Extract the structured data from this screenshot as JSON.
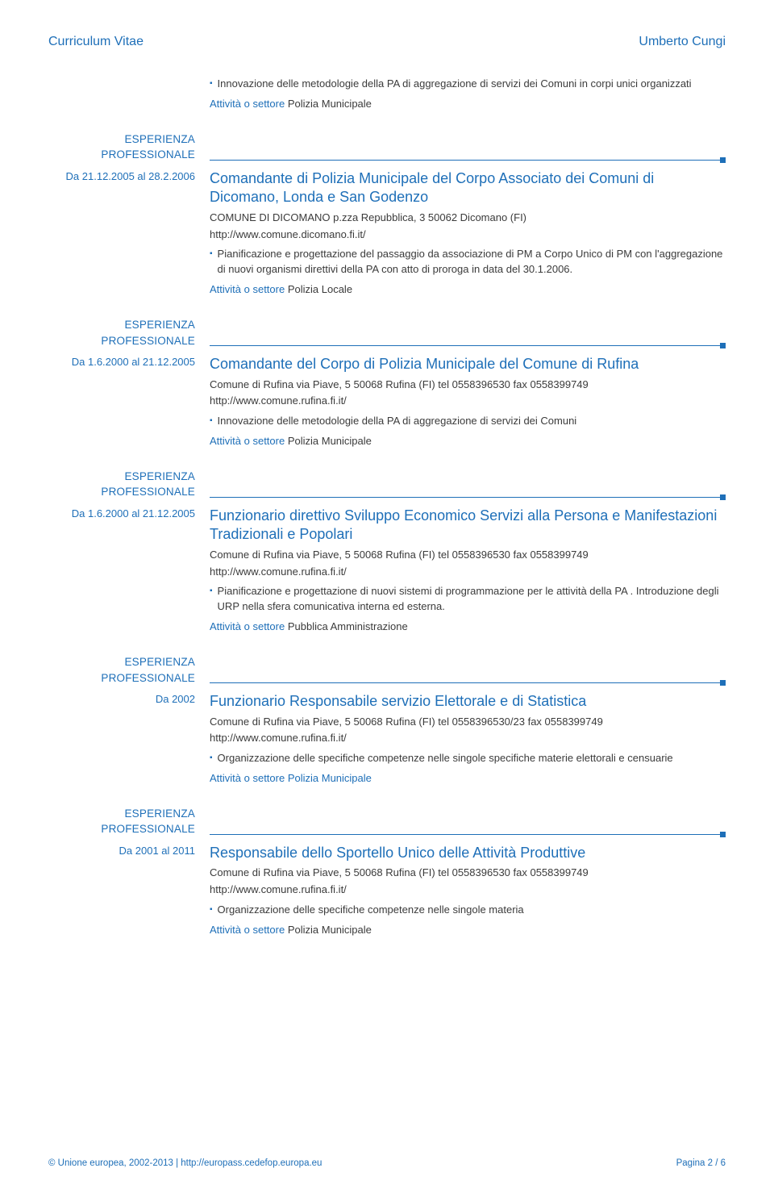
{
  "colors": {
    "accent": "#1e6fb8",
    "text": "#3b3b3b",
    "background": "#ffffff"
  },
  "typography": {
    "body_font_family": "Arial, Helvetica, sans-serif",
    "body_fontsize_pt": 10,
    "job_title_fontsize_pt": 14,
    "header_fontsize_pt": 12
  },
  "header": {
    "left": "Curriculum Vitae",
    "right": "Umberto Cungi"
  },
  "intro_entry": {
    "bullets": [
      "Innovazione delle metodologie della PA di aggregazione di servizi dei Comuni in corpi unici organizzati"
    ],
    "activity_label": "Attività o settore",
    "activity_value": "Polizia Municipale"
  },
  "section_label_line1": "ESPERIENZA",
  "section_label_line2": "PROFESSIONALE",
  "entries": [
    {
      "date": "Da 21.12.2005 al 28.2.2006",
      "title": "Comandante di Polizia Municipale del Corpo Associato dei Comuni di Dicomano, Londa e San Godenzo",
      "employer": "COMUNE DI DICOMANO p.zza Repubblica, 3 50062 Dicomano (FI)",
      "link": "http://www.comune.dicomano.fi.it/",
      "bullets": [
        "Pianificazione e progettazione del passaggio da associazione di PM a Corpo Unico di PM con l'aggregazione di nuovi organismi direttivi della PA con atto di proroga in data del 30.1.2006."
      ],
      "activity_label": "Attività o settore",
      "activity_value": "Polizia Locale",
      "activity_value_blue": false
    },
    {
      "date": "Da 1.6.2000 al 21.12.2005",
      "title": "Comandante del Corpo di Polizia Municipale del Comune di Rufina",
      "employer": "Comune di Rufina via Piave, 5 50068 Rufina (FI) tel 0558396530 fax 0558399749",
      "link": "http://www.comune.rufina.fi.it/",
      "bullets": [
        "Innovazione delle metodologie della PA di aggregazione di servizi dei Comuni"
      ],
      "activity_label": "Attività o settore",
      "activity_value": "Polizia Municipale",
      "activity_value_blue": false
    },
    {
      "date": "Da 1.6.2000 al 21.12.2005",
      "title": "Funzionario direttivo Sviluppo Economico Servizi alla Persona e Manifestazioni Tradizionali e Popolari",
      "employer": "Comune di Rufina via Piave, 5 50068 Rufina (FI) tel 0558396530 fax 0558399749",
      "link": "http://www.comune.rufina.fi.it/",
      "bullets": [
        "Pianificazione e progettazione di nuovi sistemi di programmazione per le attività della PA . Introduzione degli URP nella sfera comunicativa interna ed esterna."
      ],
      "activity_label": "Attività o settore",
      "activity_value": "Pubblica Amministrazione",
      "activity_value_blue": false
    },
    {
      "date": "Da 2002",
      "title": "Funzionario Responsabile servizio Elettorale e di Statistica",
      "employer": "Comune di Rufina via Piave, 5 50068 Rufina (FI) tel 0558396530/23 fax 0558399749",
      "link": "http://www.comune.rufina.fi.it/",
      "bullets": [
        "Organizzazione delle specifiche competenze nelle singole specifiche materie elettorali e censuarie"
      ],
      "activity_label": "Attività o settore",
      "activity_value": "Polizia Municipale",
      "activity_value_blue": true
    },
    {
      "date": "Da 2001 al 2011",
      "title": "Responsabile dello Sportello Unico delle Attività Produttive",
      "employer": "Comune di Rufina via Piave, 5 50068 Rufina (FI) tel 0558396530 fax 0558399749",
      "link": "http://www.comune.rufina.fi.it/",
      "bullets": [
        "Organizzazione delle specifiche competenze nelle singole materia"
      ],
      "activity_label": "Attività o settore",
      "activity_value": "Polizia Municipale",
      "activity_value_blue": false
    }
  ],
  "footer": {
    "left": "© Unione europea, 2002-2013 | http://europass.cedefop.europa.eu",
    "right": "Pagina 2 / 6"
  }
}
